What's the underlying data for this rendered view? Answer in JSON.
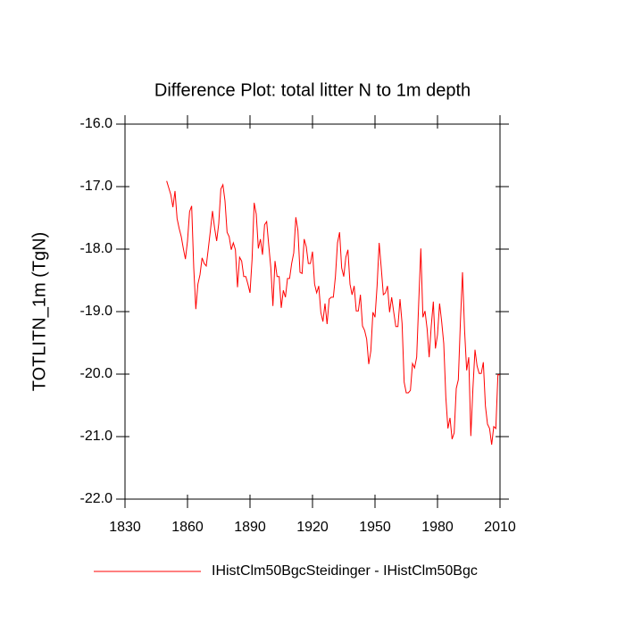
{
  "chart_data": {
    "type": "line",
    "title": "Difference Plot: total litter N to 1m depth",
    "ylabel": "TOTLITN_1m  (TgN)",
    "x": [
      1850,
      1851,
      1852,
      1853,
      1854,
      1855,
      1856,
      1857,
      1858,
      1859,
      1860,
      1861,
      1862,
      1863,
      1864,
      1865,
      1866,
      1867,
      1868,
      1869,
      1870,
      1871,
      1872,
      1873,
      1874,
      1875,
      1876,
      1877,
      1878,
      1879,
      1880,
      1881,
      1882,
      1883,
      1884,
      1885,
      1886,
      1887,
      1888,
      1889,
      1890,
      1891,
      1892,
      1893,
      1894,
      1895,
      1896,
      1897,
      1898,
      1899,
      1900,
      1901,
      1902,
      1903,
      1904,
      1905,
      1906,
      1907,
      1908,
      1909,
      1910,
      1911,
      1912,
      1913,
      1914,
      1915,
      1916,
      1917,
      1918,
      1919,
      1920,
      1921,
      1922,
      1923,
      1924,
      1925,
      1926,
      1927,
      1928,
      1929,
      1930,
      1931,
      1932,
      1933,
      1934,
      1935,
      1936,
      1937,
      1938,
      1939,
      1940,
      1941,
      1942,
      1943,
      1944,
      1945,
      1946,
      1947,
      1948,
      1949,
      1950,
      1951,
      1952,
      1953,
      1954,
      1955,
      1956,
      1957,
      1958,
      1959,
      1960,
      1961,
      1962,
      1963,
      1964,
      1965,
      1966,
      1967,
      1968,
      1969,
      1970,
      1971,
      1972,
      1973,
      1974,
      1975,
      1976,
      1977,
      1978,
      1979,
      1980,
      1981,
      1982,
      1983,
      1984,
      1985,
      1986,
      1987,
      1988,
      1989,
      1990,
      1991,
      1992,
      1993,
      1994,
      1995,
      1996,
      1997,
      1998,
      1999,
      2000,
      2001,
      2002,
      2003,
      2004,
      2005,
      2006,
      2007,
      2008,
      2009,
      2010
    ],
    "series": [
      {
        "name": "IHistClm50BgcSteidinger - IHistClm50Bgc",
        "color": "#ff0000",
        "values": [
          -16.91,
          -17.02,
          -17.13,
          -17.33,
          -17.07,
          -17.51,
          -17.67,
          -17.8,
          -17.99,
          -18.16,
          -17.87,
          -17.4,
          -17.31,
          -18.3,
          -18.96,
          -18.56,
          -18.41,
          -18.14,
          -18.23,
          -18.27,
          -17.99,
          -17.7,
          -17.39,
          -17.66,
          -17.87,
          -17.59,
          -17.04,
          -16.97,
          -17.23,
          -17.73,
          -17.8,
          -18.01,
          -17.9,
          -18.01,
          -18.61,
          -18.13,
          -18.19,
          -18.44,
          -18.44,
          -18.56,
          -18.7,
          -18.16,
          -17.26,
          -17.44,
          -17.99,
          -17.84,
          -18.09,
          -17.61,
          -17.56,
          -17.94,
          -18.3,
          -18.91,
          -18.19,
          -18.44,
          -18.44,
          -18.94,
          -18.66,
          -18.77,
          -18.47,
          -18.47,
          -18.23,
          -18.06,
          -17.49,
          -17.7,
          -18.37,
          -18.39,
          -17.84,
          -17.96,
          -18.23,
          -18.23,
          -18.04,
          -18.56,
          -18.7,
          -18.59,
          -19.01,
          -19.16,
          -18.87,
          -19.2,
          -18.8,
          -18.77,
          -18.77,
          -18.44,
          -17.9,
          -17.73,
          -18.3,
          -18.44,
          -18.13,
          -18.01,
          -18.56,
          -18.73,
          -18.59,
          -18.99,
          -18.99,
          -18.73,
          -19.23,
          -19.3,
          -19.44,
          -19.84,
          -19.63,
          -19.01,
          -19.09,
          -18.59,
          -17.9,
          -18.3,
          -18.73,
          -18.7,
          -18.59,
          -19.01,
          -18.77,
          -19.01,
          -19.24,
          -19.24,
          -18.8,
          -19.19,
          -20.13,
          -20.3,
          -20.3,
          -20.26,
          -19.83,
          -19.9,
          -19.73,
          -18.84,
          -17.99,
          -19.09,
          -18.99,
          -19.27,
          -19.73,
          -19.23,
          -18.84,
          -19.59,
          -19.37,
          -18.87,
          -19.16,
          -19.51,
          -20.37,
          -20.87,
          -20.7,
          -21.04,
          -20.94,
          -20.23,
          -20.09,
          -19.16,
          -18.37,
          -19.3,
          -19.94,
          -19.73,
          -20.99,
          -20.23,
          -19.61,
          -19.87,
          -19.99,
          -19.99,
          -19.81,
          -20.51,
          -20.8,
          -20.87,
          -21.13,
          -20.84,
          -20.87,
          -20.01,
          -20.01
        ]
      }
    ],
    "xlim": [
      1830,
      2010
    ],
    "xticks": [
      1830,
      1860,
      1890,
      1920,
      1950,
      1980,
      2010
    ],
    "ylim": [
      -22,
      -16
    ],
    "yticks": [
      {
        "value": -22,
        "label": "-22.0"
      },
      {
        "value": -21,
        "label": "-21.0"
      },
      {
        "value": -20,
        "label": "-20.0"
      },
      {
        "value": -19,
        "label": "-19.0"
      },
      {
        "value": -18,
        "label": "-18.0"
      },
      {
        "value": -17,
        "label": "-17.0"
      },
      {
        "value": -16,
        "label": "-16.0"
      }
    ],
    "legend": "bottom"
  }
}
